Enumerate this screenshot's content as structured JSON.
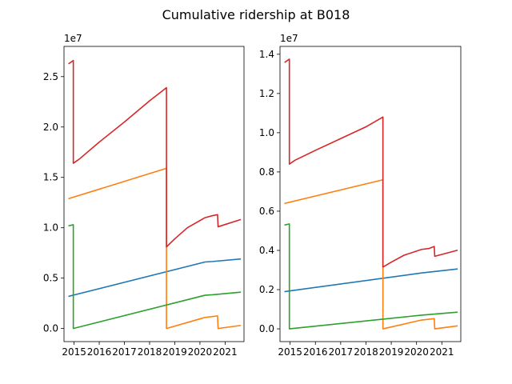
{
  "figure": {
    "title": "Cumulative ridership at B018"
  },
  "colors": [
    "#1f77b4",
    "#ff7f0e",
    "#2ca02c",
    "#d62728"
  ],
  "chart_data": [
    {
      "type": "line",
      "title": "",
      "xlabel": "",
      "ylabel": "",
      "offset_label": "1e7",
      "xlim": [
        2014.6,
        2021.75
      ],
      "ylim": [
        -1300000,
        28000000
      ],
      "xticks": [
        2015,
        2016,
        2017,
        2018,
        2019,
        2020,
        2021
      ],
      "xtick_labels": [
        "2015",
        "2016",
        "2017",
        "2018",
        "2019",
        "2020",
        "2021"
      ],
      "yticks": [
        0,
        5000000,
        10000000,
        15000000,
        20000000,
        25000000
      ],
      "ytick_labels": [
        "0.0",
        "0.5",
        "1.0",
        "1.5",
        "2.0",
        "2.5"
      ],
      "series": [
        {
          "color": "#1f77b4",
          "x": [
            2014.8,
            2020.2,
            2020.5,
            2021.6
          ],
          "y": [
            3200000,
            6600000,
            6650000,
            6900000
          ]
        },
        {
          "color": "#ff7f0e",
          "x": [
            2014.8,
            2018.67,
            2018.67,
            2020.2,
            2020.7,
            2020.72,
            2021.6
          ],
          "y": [
            12900000,
            15900000,
            0,
            1100000,
            1250000,
            0,
            300000
          ]
        },
        {
          "color": "#2ca02c",
          "x": [
            2014.8,
            2014.97,
            2014.97,
            2020.2,
            2020.5,
            2021.6
          ],
          "y": [
            10200000,
            10300000,
            0,
            3300000,
            3350000,
            3600000
          ]
        },
        {
          "color": "#d62728",
          "x": [
            2014.8,
            2014.97,
            2014.97,
            2015.2,
            2016.0,
            2017.0,
            2018.0,
            2018.67,
            2018.67,
            2019.0,
            2019.5,
            2020.2,
            2020.5,
            2020.7,
            2020.72,
            2021.6
          ],
          "y": [
            26300000,
            26600000,
            16400000,
            16800000,
            18500000,
            20500000,
            22600000,
            23900000,
            8100000,
            8900000,
            10000000,
            11000000,
            11200000,
            11300000,
            10100000,
            10800000
          ]
        }
      ]
    },
    {
      "type": "line",
      "title": "",
      "xlabel": "",
      "ylabel": "",
      "offset_label": "1e7",
      "xlim": [
        2014.6,
        2021.75
      ],
      "ylim": [
        -650000,
        14400000
      ],
      "xticks": [
        2015,
        2016,
        2017,
        2018,
        2019,
        2020,
        2021
      ],
      "xtick_labels": [
        "2015",
        "2016",
        "2017",
        "2018",
        "2019",
        "2020",
        "2021"
      ],
      "yticks": [
        0,
        2000000,
        4000000,
        6000000,
        8000000,
        10000000,
        12000000,
        14000000
      ],
      "ytick_labels": [
        "0.0",
        "0.2",
        "0.4",
        "0.6",
        "0.8",
        "1.0",
        "1.2",
        "1.4"
      ],
      "series": [
        {
          "color": "#1f77b4",
          "x": [
            2014.8,
            2020.2,
            2021.6
          ],
          "y": [
            1900000,
            2850000,
            3050000
          ]
        },
        {
          "color": "#ff7f0e",
          "x": [
            2014.8,
            2018.67,
            2018.67,
            2020.2,
            2020.7,
            2020.72,
            2021.6
          ],
          "y": [
            6400000,
            7600000,
            0,
            450000,
            520000,
            0,
            150000
          ]
        },
        {
          "color": "#2ca02c",
          "x": [
            2014.8,
            2014.97,
            2014.97,
            2020.2,
            2021.6
          ],
          "y": [
            5300000,
            5350000,
            0,
            700000,
            850000
          ]
        },
        {
          "color": "#d62728",
          "x": [
            2014.8,
            2014.97,
            2014.97,
            2015.2,
            2016.0,
            2017.0,
            2018.0,
            2018.67,
            2018.67,
            2019.0,
            2019.5,
            2020.2,
            2020.5,
            2020.7,
            2020.72,
            2021.6
          ],
          "y": [
            13600000,
            13750000,
            8400000,
            8600000,
            9100000,
            9700000,
            10300000,
            10800000,
            3150000,
            3400000,
            3750000,
            4050000,
            4100000,
            4200000,
            3700000,
            4000000
          ]
        }
      ]
    }
  ]
}
